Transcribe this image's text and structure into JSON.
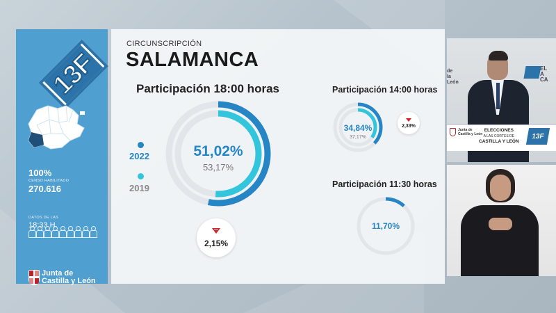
{
  "sidebar": {
    "badge": "13F",
    "escrutado": "100%",
    "censo_label": "CENSO HABILITADO",
    "censo_value": "270.616",
    "datos_label": "DATOS DE LAS",
    "datos_time": "18:33 H.",
    "logo_line1": "Junta de",
    "logo_line2": "Castilla y León"
  },
  "card": {
    "circ_label": "CIRCUNSCRIPCIÓN",
    "province": "SALAMANCA",
    "main": {
      "title": "Participación 18:00 horas",
      "value_2022": "51,02%",
      "value_2019": "53,17%",
      "fraction_2022": 0.5102,
      "fraction_2019": 0.5317,
      "year_a": "2022",
      "year_b": "2019",
      "diff": "2,15%"
    },
    "p1400": {
      "title": "Participación 14:00 horas",
      "value_2022": "34,84%",
      "value_2019": "37,17%",
      "fraction_2022": 0.3484,
      "fraction_2019": 0.3717,
      "diff": "2,33%"
    },
    "p1130": {
      "title": "Participación 11:30 horas",
      "value_2022": "11,70%",
      "fraction_2022": 0.117
    }
  },
  "video": {
    "wall_left": "de\nla\nLeón",
    "wall_right": "EL\nA\nCA",
    "podium_logo_1": "Junta de",
    "podium_logo_2": "Castilla y León",
    "podium_title_1": "ELECCIONES",
    "podium_title_2": "A LAS CORTES DE",
    "podium_title_3": "CASTILLA Y LEÓN",
    "podium_badge": "13F"
  },
  "colors": {
    "blue_dark": "#2585c5",
    "cyan": "#33c5dc",
    "ring_bg": "#e2e6ea",
    "sidebar": "#4f9fd0",
    "red": "#d42027"
  }
}
